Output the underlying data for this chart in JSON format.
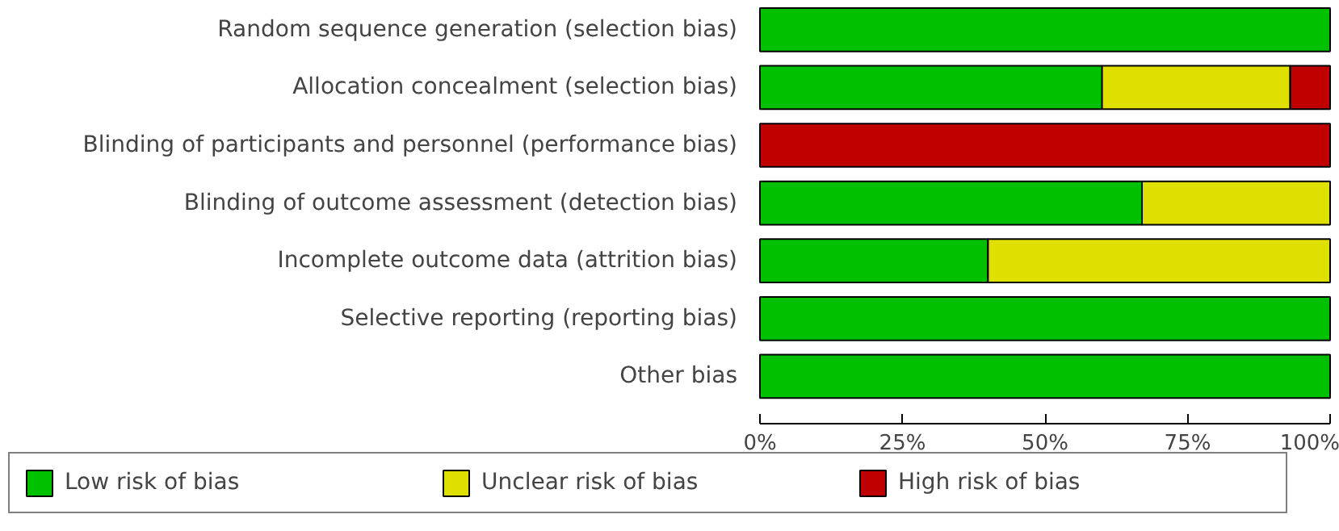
{
  "chart_data": {
    "type": "bar",
    "orientation": "horizontal",
    "stacked": true,
    "categories": [
      "Random sequence generation (selection bias)",
      "Allocation concealment (selection bias)",
      "Blinding of participants and personnel (performance bias)",
      "Blinding of outcome assessment (detection bias)",
      "Incomplete outcome data (attrition bias)",
      "Selective reporting (reporting bias)",
      "Other bias"
    ],
    "series": [
      {
        "name": "Low risk of bias",
        "color": "#00c000",
        "values": [
          100,
          60,
          0,
          67,
          40,
          100,
          100
        ]
      },
      {
        "name": "Unclear risk of bias",
        "color": "#e0e000",
        "values": [
          0,
          33,
          0,
          33,
          60,
          0,
          0
        ]
      },
      {
        "name": "High risk of bias",
        "color": "#c00000",
        "values": [
          0,
          7,
          100,
          0,
          0,
          0,
          0
        ]
      }
    ],
    "xlim": [
      0,
      100
    ],
    "xticks": [
      {
        "value": 0,
        "label": "0%"
      },
      {
        "value": 25,
        "label": "25%"
      },
      {
        "value": 50,
        "label": "50%"
      },
      {
        "value": 75,
        "label": "75%"
      },
      {
        "value": 100,
        "label": "100%"
      }
    ],
    "grid": false,
    "legend": "bottom"
  }
}
